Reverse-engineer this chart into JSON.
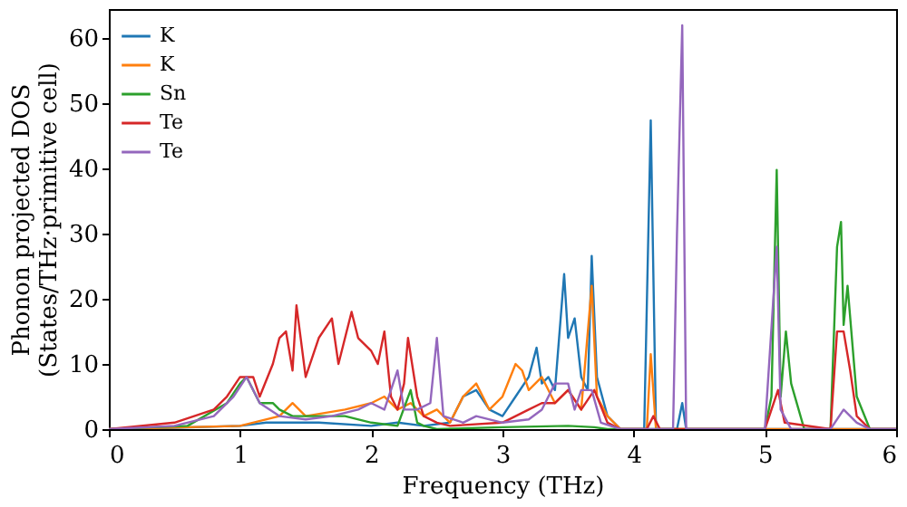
{
  "chart_data": {
    "type": "line",
    "xlabel": "Frequency (THz)",
    "ylabel": "Phonon projected DOS\n(States/THz·primitive cell)",
    "xlim": [
      0,
      6
    ],
    "ylim": [
      0,
      64.5
    ],
    "xticks": [
      0,
      1,
      2,
      3,
      4,
      5,
      6
    ],
    "yticks": [
      0,
      10,
      20,
      30,
      40,
      50,
      60
    ],
    "legend": "top left",
    "grid": false,
    "marker": "none",
    "line_style": "solid",
    "series": [
      {
        "name": "K",
        "color": "#1f77b4",
        "x": [
          0,
          0.5,
          1.0,
          1.2,
          1.4,
          1.6,
          2.0,
          2.2,
          2.4,
          2.6,
          2.7,
          2.8,
          2.9,
          3.0,
          3.1,
          3.2,
          3.26,
          3.3,
          3.35,
          3.4,
          3.47,
          3.5,
          3.55,
          3.6,
          3.65,
          3.68,
          3.72,
          3.8,
          3.9,
          4.08,
          4.13,
          4.17,
          4.33,
          4.37,
          4.4,
          6
        ],
        "values": [
          0,
          0.2,
          0.5,
          1,
          1,
          1,
          0.5,
          1,
          0.5,
          1,
          5,
          6,
          3,
          2,
          5,
          8,
          12.5,
          7,
          8,
          6,
          23.8,
          14,
          17,
          8,
          6,
          26.6,
          8,
          2,
          0,
          0,
          47.4,
          0,
          0,
          4,
          0,
          0
        ]
      },
      {
        "name": "K",
        "color": "#ff7f0e",
        "x": [
          0,
          1.0,
          1.3,
          1.4,
          1.5,
          1.8,
          2.0,
          2.1,
          2.2,
          2.3,
          2.4,
          2.5,
          2.6,
          2.7,
          2.8,
          2.9,
          3.0,
          3.1,
          3.15,
          3.2,
          3.3,
          3.4,
          3.5,
          3.6,
          3.68,
          3.72,
          3.8,
          3.9,
          4.1,
          4.13,
          4.17,
          6
        ],
        "values": [
          0,
          0.5,
          2,
          4,
          2,
          3,
          4,
          5,
          3,
          4,
          2,
          3,
          1,
          5,
          7,
          3,
          5,
          10,
          9,
          6,
          8,
          4,
          6,
          3,
          22,
          5,
          2,
          0,
          0,
          11.5,
          0,
          0
        ]
      },
      {
        "name": "Sn",
        "color": "#2ca02c",
        "x": [
          0,
          0.6,
          0.9,
          1.0,
          1.05,
          1.15,
          1.25,
          1.3,
          1.4,
          1.6,
          1.8,
          2.0,
          2.2,
          2.3,
          2.35,
          2.4,
          2.5,
          3.0,
          3.5,
          3.7,
          3.8,
          5.0,
          5.05,
          5.09,
          5.12,
          5.16,
          5.2,
          5.3,
          5.5,
          5.55,
          5.58,
          5.6,
          5.63,
          5.7,
          5.8,
          6
        ],
        "values": [
          0,
          0.5,
          4,
          7,
          8,
          4,
          4,
          3,
          2,
          2,
          2,
          1,
          0.5,
          6,
          1,
          0.5,
          0,
          0.3,
          0.5,
          0.3,
          0,
          0,
          5,
          39.8,
          5,
          15,
          7,
          0,
          0,
          28,
          31.8,
          16,
          22,
          5,
          0,
          0
        ]
      },
      {
        "name": "Te",
        "color": "#d62728",
        "x": [
          0,
          0.5,
          0.8,
          0.9,
          1.0,
          1.1,
          1.15,
          1.25,
          1.3,
          1.35,
          1.4,
          1.43,
          1.5,
          1.6,
          1.7,
          1.75,
          1.8,
          1.85,
          1.9,
          2.0,
          2.05,
          2.1,
          2.15,
          2.2,
          2.25,
          2.28,
          2.35,
          2.4,
          2.5,
          2.6,
          3.0,
          3.2,
          3.3,
          3.4,
          3.5,
          3.6,
          3.7,
          3.8,
          3.9,
          4.1,
          4.15,
          4.2,
          5.0,
          5.1,
          5.15,
          5.5,
          5.55,
          5.6,
          5.65,
          5.7,
          5.8,
          6
        ],
        "values": [
          0,
          1,
          3,
          5,
          8,
          8,
          5,
          10,
          14,
          15,
          9,
          19,
          8,
          14,
          17,
          10,
          14,
          18,
          14,
          12,
          10,
          15,
          5,
          3,
          7,
          14,
          5,
          2,
          1,
          0.5,
          1,
          3,
          4,
          4,
          6,
          3,
          6,
          1,
          0,
          0,
          2,
          0,
          0,
          6,
          1,
          0,
          15,
          15,
          9,
          2,
          0,
          0
        ]
      },
      {
        "name": "Te",
        "color": "#9467bd",
        "x": [
          0,
          0.5,
          0.8,
          0.95,
          1.05,
          1.15,
          1.3,
          1.5,
          1.7,
          1.9,
          2.0,
          2.1,
          2.2,
          2.25,
          2.35,
          2.45,
          2.5,
          2.55,
          2.7,
          2.8,
          3.0,
          3.2,
          3.3,
          3.4,
          3.5,
          3.55,
          3.6,
          3.68,
          3.75,
          3.9,
          4.3,
          4.33,
          4.37,
          4.4,
          5.0,
          5.09,
          5.12,
          5.2,
          5.5,
          5.6,
          5.7,
          5.8,
          6
        ],
        "values": [
          0,
          0.5,
          2,
          5,
          8,
          4,
          2,
          1.5,
          2,
          3,
          4,
          3,
          9,
          3,
          3,
          4,
          14,
          2,
          1,
          2,
          1,
          1.5,
          3,
          7,
          7,
          3,
          6,
          6,
          1,
          0,
          0,
          30,
          62,
          0,
          0,
          28,
          3,
          0,
          0,
          3,
          1,
          0,
          0
        ]
      }
    ]
  }
}
